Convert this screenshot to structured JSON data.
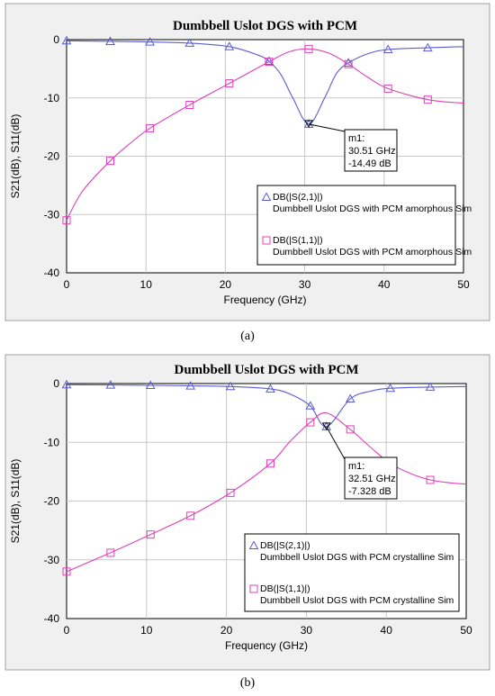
{
  "panels": [
    {
      "label": "(a)",
      "chart_data": {
        "type": "line",
        "title": "Dumbbell Uslot DGS with PCM",
        "xlabel": "Frequency (GHz)",
        "ylabel": "S21(dB), S11(dB)",
        "xlim": [
          0,
          50
        ],
        "ylim": [
          -40,
          0
        ],
        "xticks": [
          0,
          10,
          20,
          30,
          40,
          50
        ],
        "yticks": [
          0,
          -10,
          -20,
          -30,
          -40
        ],
        "grid": true,
        "legend_position": "lower-right",
        "series": [
          {
            "legend": "DB(|S(2,1)|)",
            "sublabel": "Dumbbell Uslot DGS with PCM amorphous Sim",
            "color": "#5b5bd6",
            "marker": "triangle",
            "x": [
              0,
              5.5,
              10.5,
              15.5,
              20.5,
              24,
              25.5,
              27,
              28.5,
              30.51,
              32.5,
              34,
              35.5,
              38,
              40.5,
              45.5,
              50
            ],
            "y": [
              -0.2,
              -0.3,
              -0.4,
              -0.6,
              -1.2,
              -2.6,
              -3.7,
              -6.0,
              -10.0,
              -14.49,
              -10.0,
              -5.8,
              -4.0,
              -2.4,
              -1.7,
              -1.4,
              -1.2
            ],
            "marker_x": [
              0,
              5.5,
              10.5,
              15.5,
              20.5,
              25.5,
              30.51,
              35.5,
              40.5,
              45.5
            ]
          },
          {
            "legend": "DB(|S(1,1)|)",
            "sublabel": "Dumbbell Uslot DGS with PCM amorphous Sim",
            "color": "#e040b8",
            "marker": "square",
            "x": [
              0,
              2,
              5.5,
              8,
              10.5,
              15.5,
              20.5,
              25.5,
              28,
              30.5,
              33,
              35.5,
              38,
              40.5,
              45.5,
              50
            ],
            "y": [
              -31,
              -26,
              -20.8,
              -17.8,
              -15.2,
              -11.2,
              -7.5,
              -3.8,
              -2.1,
              -1.6,
              -2.3,
              -4.2,
              -6.5,
              -8.4,
              -10.3,
              -10.9
            ],
            "marker_x": [
              0,
              5.5,
              10.5,
              15.5,
              20.5,
              25.5,
              30.5,
              35.5,
              40.5,
              45.5
            ]
          }
        ],
        "marker_annotation": {
          "name": "m1:",
          "line1": "30.51 GHz",
          "line2": "-14.49 dB",
          "x": 30.51,
          "y": -14.49
        }
      }
    },
    {
      "label": "(b)",
      "chart_data": {
        "type": "line",
        "title": "Dumbbell Uslot DGS with PCM",
        "xlabel": "Frequency (GHz)",
        "ylabel": "S21(dB), S11(dB)",
        "xlim": [
          0,
          50
        ],
        "ylim": [
          -40,
          0
        ],
        "xticks": [
          0,
          10,
          20,
          30,
          40,
          50
        ],
        "yticks": [
          0,
          -10,
          -20,
          -30,
          -40
        ],
        "grid": true,
        "legend_position": "lower-right",
        "series": [
          {
            "legend": "DB(|S(2,1)|)",
            "sublabel": "Dumbbell Uslot DGS with PCM crystalline Sim",
            "color": "#5b5bd6",
            "marker": "triangle",
            "x": [
              0,
              5.5,
              10.5,
              15.5,
              20.5,
              25.5,
              28,
              30.5,
              32.51,
              35.5,
              38,
              40.5,
              45.5,
              50
            ],
            "y": [
              -0.2,
              -0.25,
              -0.3,
              -0.4,
              -0.5,
              -0.9,
              -1.8,
              -3.8,
              -7.328,
              -2.6,
              -1.3,
              -0.8,
              -0.6,
              -0.5
            ],
            "marker_x": [
              0,
              5.5,
              10.5,
              15.5,
              20.5,
              25.5,
              30.5,
              32.51,
              35.5,
              40.5,
              45.5
            ]
          },
          {
            "legend": "DB(|S(1,1)|)",
            "sublabel": "Dumbbell Uslot DGS with PCM crystalline Sim",
            "color": "#e040b8",
            "marker": "square",
            "x": [
              0,
              5.5,
              10.5,
              15.5,
              20.5,
              25.5,
              28,
              30.5,
              32.5,
              35.5,
              38,
              40.5,
              43,
              45.5,
              48,
              50
            ],
            "y": [
              -32,
              -28.8,
              -25.7,
              -22.5,
              -18.6,
              -13.6,
              -9.8,
              -6.6,
              -5.0,
              -7.8,
              -10.8,
              -13.6,
              -15.3,
              -16.4,
              -16.9,
              -17.1
            ],
            "marker_x": [
              0,
              5.5,
              10.5,
              15.5,
              20.5,
              25.5,
              30.5,
              35.5,
              40.5,
              45.5
            ]
          }
        ],
        "marker_annotation": {
          "name": "m1:",
          "line1": "32.51 GHz",
          "line2": "-7.328 dB",
          "x": 32.51,
          "y": -7.328
        }
      }
    }
  ]
}
